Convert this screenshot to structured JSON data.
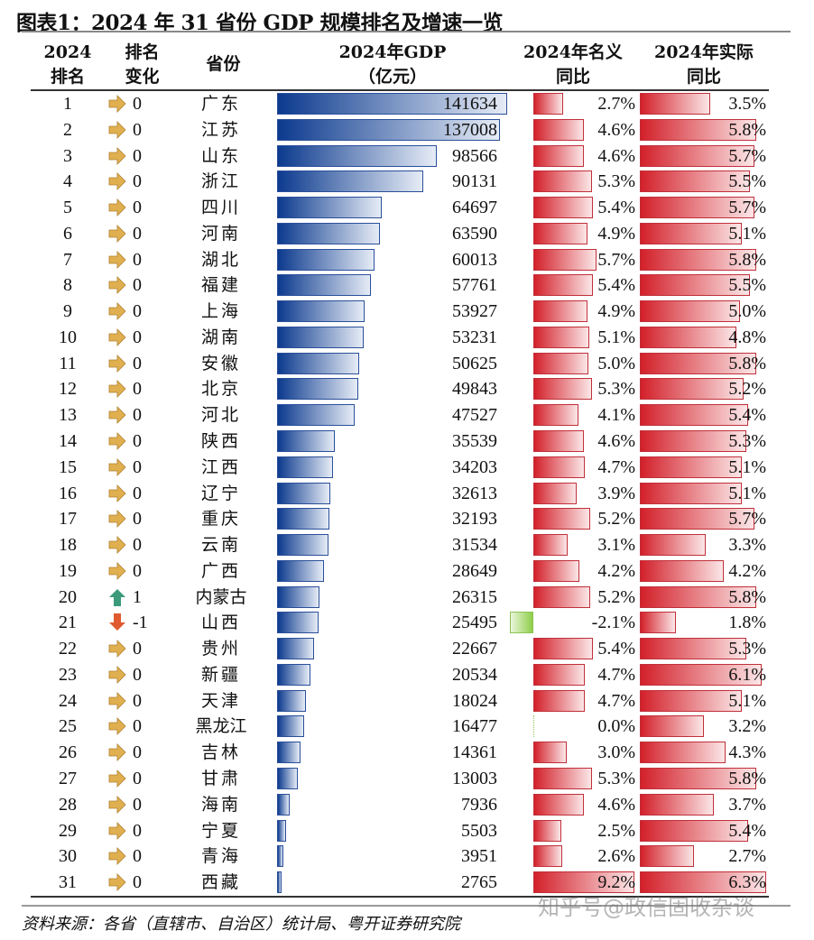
{
  "title": "图表1：2024 年 31 省份 GDP 规模排名及增速一览",
  "headers": {
    "rank": [
      "2024",
      "排名"
    ],
    "change": [
      "排名",
      "变化"
    ],
    "province": "省份",
    "gdp": [
      "2024年GDP",
      "（亿元）"
    ],
    "nominal": [
      "2024年名义",
      "同比"
    ],
    "real": [
      "2024年实际",
      "同比"
    ]
  },
  "source": "资料来源：各省（直辖市、自治区）统计局、粤开证券研究院",
  "watermark": "知乎号@政信固收杂谈",
  "colors": {
    "gdp_bar": "#0c3a8e",
    "growth_bar": "#d3202a",
    "negative_bar": "#8fce4a",
    "arrow_flat": "#e0b050",
    "arrow_up": "#3a9a7a",
    "arrow_down": "#e05a30"
  },
  "chart_data": {
    "type": "table",
    "columns": [
      "2024排名",
      "排名变化",
      "省份",
      "2024年GDP（亿元）",
      "2024年名义同比",
      "2024年实际同比"
    ],
    "rows": [
      {
        "rank": "1",
        "arrow": "flat",
        "change": "0",
        "province": "广东",
        "gdp": 141634,
        "nominal": 2.7,
        "real": 3.5
      },
      {
        "rank": "2",
        "arrow": "flat",
        "change": "0",
        "province": "江苏",
        "gdp": 137008,
        "nominal": 4.6,
        "real": 5.8
      },
      {
        "rank": "3",
        "arrow": "flat",
        "change": "0",
        "province": "山东",
        "gdp": 98566,
        "nominal": 4.6,
        "real": 5.7
      },
      {
        "rank": "4",
        "arrow": "flat",
        "change": "0",
        "province": "浙江",
        "gdp": 90131,
        "nominal": 5.3,
        "real": 5.5
      },
      {
        "rank": "5",
        "arrow": "flat",
        "change": "0",
        "province": "四川",
        "gdp": 64697,
        "nominal": 5.4,
        "real": 5.7
      },
      {
        "rank": "6",
        "arrow": "flat",
        "change": "0",
        "province": "河南",
        "gdp": 63590,
        "nominal": 4.9,
        "real": 5.1
      },
      {
        "rank": "7",
        "arrow": "flat",
        "change": "0",
        "province": "湖北",
        "gdp": 60013,
        "nominal": 5.7,
        "real": 5.8
      },
      {
        "rank": "8",
        "arrow": "flat",
        "change": "0",
        "province": "福建",
        "gdp": 57761,
        "nominal": 5.4,
        "real": 5.5
      },
      {
        "rank": "9",
        "arrow": "flat",
        "change": "0",
        "province": "上海",
        "gdp": 53927,
        "nominal": 4.9,
        "real": 5.0
      },
      {
        "rank": "10",
        "arrow": "flat",
        "change": "0",
        "province": "湖南",
        "gdp": 53231,
        "nominal": 5.1,
        "real": 4.8
      },
      {
        "rank": "11",
        "arrow": "flat",
        "change": "0",
        "province": "安徽",
        "gdp": 50625,
        "nominal": 5.0,
        "real": 5.8
      },
      {
        "rank": "12",
        "arrow": "flat",
        "change": "0",
        "province": "北京",
        "gdp": 49843,
        "nominal": 5.3,
        "real": 5.2
      },
      {
        "rank": "13",
        "arrow": "flat",
        "change": "0",
        "province": "河北",
        "gdp": 47527,
        "nominal": 4.1,
        "real": 5.4
      },
      {
        "rank": "14",
        "arrow": "flat",
        "change": "0",
        "province": "陕西",
        "gdp": 35539,
        "nominal": 4.6,
        "real": 5.3
      },
      {
        "rank": "15",
        "arrow": "flat",
        "change": "0",
        "province": "江西",
        "gdp": 34203,
        "nominal": 4.7,
        "real": 5.1
      },
      {
        "rank": "16",
        "arrow": "flat",
        "change": "0",
        "province": "辽宁",
        "gdp": 32613,
        "nominal": 3.9,
        "real": 5.1
      },
      {
        "rank": "17",
        "arrow": "flat",
        "change": "0",
        "province": "重庆",
        "gdp": 32193,
        "nominal": 5.2,
        "real": 5.7
      },
      {
        "rank": "18",
        "arrow": "flat",
        "change": "0",
        "province": "云南",
        "gdp": 31534,
        "nominal": 3.1,
        "real": 3.3
      },
      {
        "rank": "19",
        "arrow": "flat",
        "change": "0",
        "province": "广西",
        "gdp": 28649,
        "nominal": 4.2,
        "real": 4.2
      },
      {
        "rank": "20",
        "arrow": "up",
        "change": "1",
        "province": "内蒙古",
        "gdp": 26315,
        "nominal": 5.2,
        "real": 5.8
      },
      {
        "rank": "21",
        "arrow": "down",
        "change": "-1",
        "province": "山西",
        "gdp": 25495,
        "nominal": -2.1,
        "real": 1.8
      },
      {
        "rank": "22",
        "arrow": "flat",
        "change": "0",
        "province": "贵州",
        "gdp": 22667,
        "nominal": 5.4,
        "real": 5.3
      },
      {
        "rank": "23",
        "arrow": "flat",
        "change": "0",
        "province": "新疆",
        "gdp": 20534,
        "nominal": 4.7,
        "real": 6.1
      },
      {
        "rank": "24",
        "arrow": "flat",
        "change": "0",
        "province": "天津",
        "gdp": 18024,
        "nominal": 4.7,
        "real": 5.1
      },
      {
        "rank": "25",
        "arrow": "flat",
        "change": "0",
        "province": "黑龙江",
        "gdp": 16477,
        "nominal": 0.0,
        "real": 3.2
      },
      {
        "rank": "26",
        "arrow": "flat",
        "change": "0",
        "province": "吉林",
        "gdp": 14361,
        "nominal": 3.0,
        "real": 4.3
      },
      {
        "rank": "27",
        "arrow": "flat",
        "change": "0",
        "province": "甘肃",
        "gdp": 13003,
        "nominal": 5.3,
        "real": 5.8
      },
      {
        "rank": "28",
        "arrow": "flat",
        "change": "0",
        "province": "海南",
        "gdp": 7936,
        "nominal": 4.6,
        "real": 3.7
      },
      {
        "rank": "29",
        "arrow": "flat",
        "change": "0",
        "province": "宁夏",
        "gdp": 5503,
        "nominal": 2.5,
        "real": 5.4
      },
      {
        "rank": "30",
        "arrow": "flat",
        "change": "0",
        "province": "青海",
        "gdp": 3951,
        "nominal": 2.6,
        "real": 2.7
      },
      {
        "rank": "31",
        "arrow": "flat",
        "change": "0",
        "province": "西藏",
        "gdp": 2765,
        "nominal": 9.2,
        "real": 6.3
      }
    ]
  }
}
